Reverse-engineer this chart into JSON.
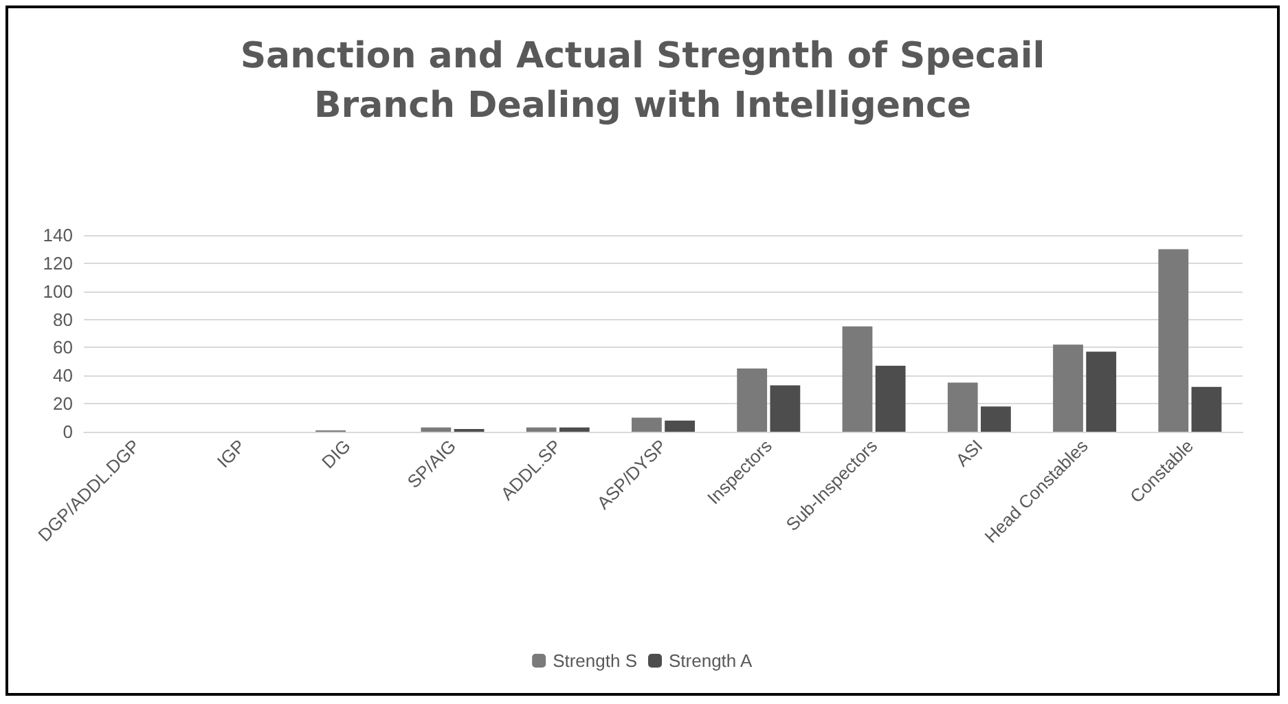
{
  "chart_data": {
    "type": "bar",
    "title": "Sanction and Actual Stregnth of Specail\nBranch Dealing with Intelligence",
    "categories": [
      "DGP/ADDL.DGP",
      "IGP",
      "DIG",
      "SP/AIG",
      "ADDL.SP",
      "ASP/DYSP",
      "Inspectors",
      "Sub-Inspectors",
      "ASI",
      "Head Constables",
      "Constable"
    ],
    "series": [
      {
        "name": "Strength S",
        "color": "#7a7a7a",
        "values": [
          0,
          0,
          1,
          3,
          3,
          10,
          45,
          75,
          35,
          62,
          130
        ]
      },
      {
        "name": "Strength A",
        "color": "#4d4d4d",
        "values": [
          0,
          0,
          0,
          2,
          3,
          8,
          33,
          47,
          18,
          57,
          32
        ]
      }
    ],
    "ylim": [
      0,
      140
    ],
    "yticks": [
      0,
      20,
      40,
      60,
      80,
      100,
      120,
      140
    ],
    "grid": "y",
    "legend": "bottom"
  }
}
